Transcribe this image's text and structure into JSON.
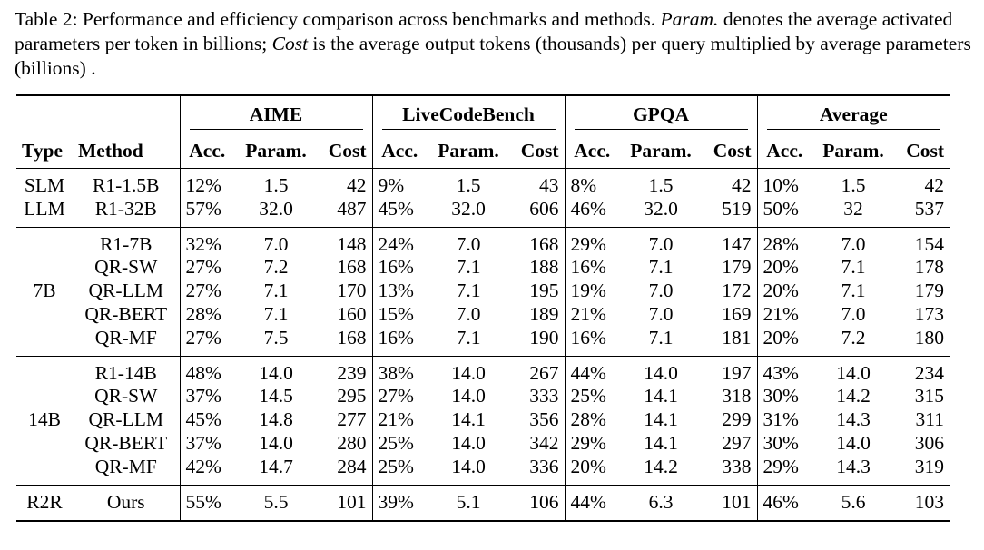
{
  "caption": {
    "part1": "Table 2: Performance and efficiency comparison across benchmarks and methods. ",
    "param_term": "Param.",
    "part2": " denotes the average activated parameters per token in billions; ",
    "cost_term": "Cost",
    "part3": " is the average output tokens (thousands) per query multiplied by average parameters (billions) ."
  },
  "table": {
    "benchmarks": [
      "AIME",
      "LiveCodeBench",
      "GPQA",
      "Average"
    ],
    "columns": {
      "type": "Type",
      "method": "Method",
      "acc": "Acc.",
      "param": "Param.",
      "cost": "Cost"
    },
    "groups": [
      {
        "type_label": "",
        "rows": [
          {
            "type": "SLM",
            "method": "R1-1.5B",
            "cells": [
              "12%",
              "1.5",
              "42",
              "9%",
              "1.5",
              "43",
              "8%",
              "1.5",
              "42",
              "10%",
              "1.5",
              "42"
            ]
          },
          {
            "type": "LLM",
            "method": "R1-32B",
            "cells": [
              "57%",
              "32.0",
              "487",
              "45%",
              "32.0",
              "606",
              "46%",
              "32.0",
              "519",
              "50%",
              "32",
              "537"
            ]
          }
        ]
      },
      {
        "type_label": "7B",
        "rows": [
          {
            "type": "",
            "method": "R1-7B",
            "cells": [
              "32%",
              "7.0",
              "148",
              "24%",
              "7.0",
              "168",
              "29%",
              "7.0",
              "147",
              "28%",
              "7.0",
              "154"
            ]
          },
          {
            "type": "",
            "method": "QR-SW",
            "cells": [
              "27%",
              "7.2",
              "168",
              "16%",
              "7.1",
              "188",
              "16%",
              "7.1",
              "179",
              "20%",
              "7.1",
              "178"
            ]
          },
          {
            "type": "",
            "method": "QR-LLM",
            "cells": [
              "27%",
              "7.1",
              "170",
              "13%",
              "7.1",
              "195",
              "19%",
              "7.0",
              "172",
              "20%",
              "7.1",
              "179"
            ]
          },
          {
            "type": "",
            "method": "QR-BERT",
            "cells": [
              "28%",
              "7.1",
              "160",
              "15%",
              "7.0",
              "189",
              "21%",
              "7.0",
              "169",
              "21%",
              "7.0",
              "173"
            ]
          },
          {
            "type": "",
            "method": "QR-MF",
            "cells": [
              "27%",
              "7.5",
              "168",
              "16%",
              "7.1",
              "190",
              "16%",
              "7.1",
              "181",
              "20%",
              "7.2",
              "180"
            ]
          }
        ]
      },
      {
        "type_label": "14B",
        "rows": [
          {
            "type": "",
            "method": "R1-14B",
            "cells": [
              "48%",
              "14.0",
              "239",
              "38%",
              "14.0",
              "267",
              "44%",
              "14.0",
              "197",
              "43%",
              "14.0",
              "234"
            ]
          },
          {
            "type": "",
            "method": "QR-SW",
            "cells": [
              "37%",
              "14.5",
              "295",
              "27%",
              "14.0",
              "333",
              "25%",
              "14.1",
              "318",
              "30%",
              "14.2",
              "315"
            ]
          },
          {
            "type": "",
            "method": "QR-LLM",
            "cells": [
              "45%",
              "14.8",
              "277",
              "21%",
              "14.1",
              "356",
              "28%",
              "14.1",
              "299",
              "31%",
              "14.3",
              "311"
            ]
          },
          {
            "type": "",
            "method": "QR-BERT",
            "cells": [
              "37%",
              "14.0",
              "280",
              "25%",
              "14.0",
              "342",
              "29%",
              "14.1",
              "297",
              "30%",
              "14.0",
              "306"
            ]
          },
          {
            "type": "",
            "method": "QR-MF",
            "cells": [
              "42%",
              "14.7",
              "284",
              "25%",
              "14.0",
              "336",
              "20%",
              "14.2",
              "338",
              "29%",
              "14.3",
              "319"
            ]
          }
        ]
      }
    ],
    "ours": {
      "type": "R2R",
      "method": "Ours",
      "cells": [
        "55%",
        "5.5",
        "101",
        "39%",
        "5.1",
        "106",
        "44%",
        "6.3",
        "101",
        "46%",
        "5.6",
        "103"
      ]
    }
  }
}
